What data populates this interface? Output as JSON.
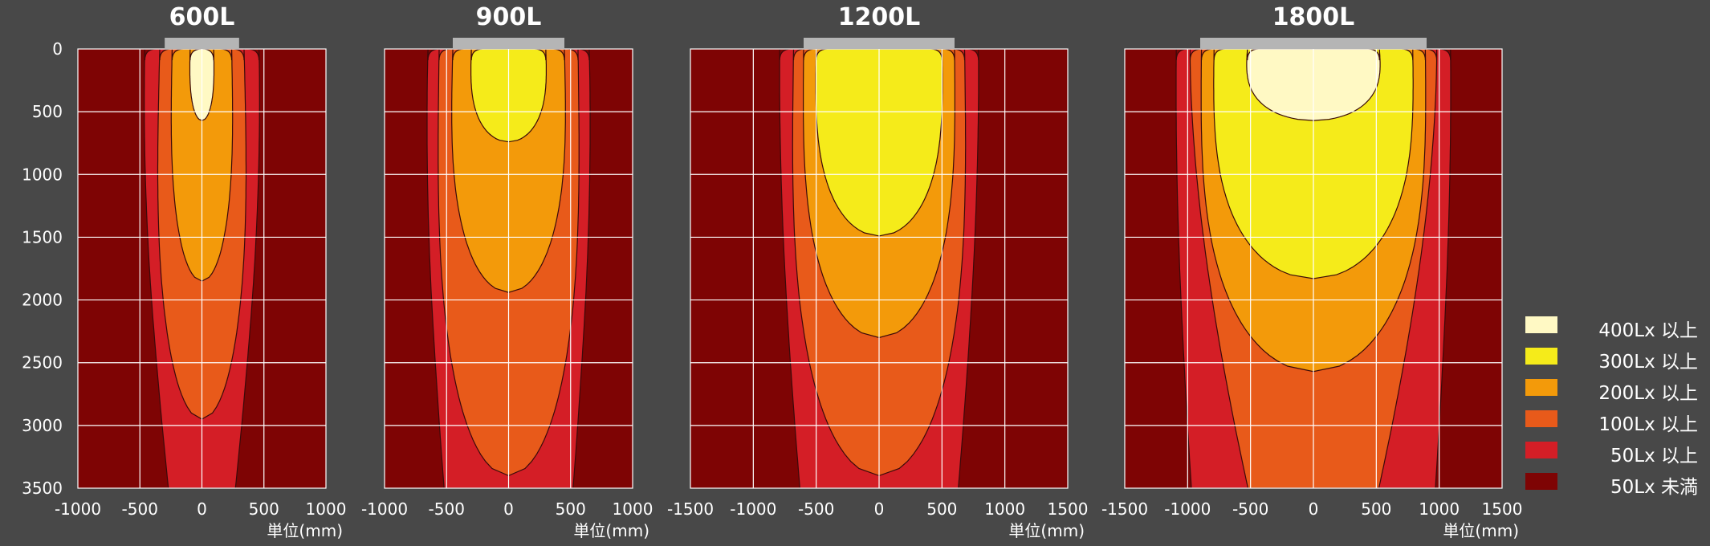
{
  "chart_data": [
    {
      "type": "heatmap",
      "title": "600L",
      "xlabel": "単位(mm)",
      "xlim": [
        -1000,
        1000
      ],
      "ylim": [
        0,
        3500
      ],
      "x_ticks": [
        "-1000",
        "-500",
        "0",
        "500",
        "1000"
      ],
      "y_ticks": [
        "0",
        "500",
        "1000",
        "1500",
        "2000",
        "2500",
        "3000",
        "3500"
      ],
      "lamp_width_mm": 600,
      "y_reversed": true,
      "grid": true,
      "contours": [
        {
          "level": "50Lx 以上",
          "halfwidth_at_top": 460,
          "max_halfwidth": 500,
          "depth": 3500,
          "width_at_depth": 230
        },
        {
          "level": "100Lx 以上",
          "halfwidth_at_top": 340,
          "max_halfwidth": 370,
          "depth": 2950,
          "width_at_depth": 0
        },
        {
          "level": "200Lx 以上",
          "halfwidth_at_top": 240,
          "max_halfwidth": 255,
          "depth": 1850,
          "width_at_depth": 0
        },
        {
          "level": "400Lx 以上",
          "halfwidth_at_top": 95,
          "max_halfwidth": 100,
          "depth": 570,
          "width_at_depth": 0
        }
      ]
    },
    {
      "type": "heatmap",
      "title": "900L",
      "xlabel": "単位(mm)",
      "xlim": [
        -1000,
        1000
      ],
      "ylim": [
        0,
        3500
      ],
      "x_ticks": [
        "-1000",
        "-500",
        "0",
        "500",
        "1000"
      ],
      "y_ticks": [],
      "lamp_width_mm": 900,
      "y_reversed": true,
      "grid": true,
      "contours": [
        {
          "level": "50Lx 以上",
          "halfwidth_at_top": 650,
          "max_halfwidth": 690,
          "depth": 3500,
          "width_at_depth": 480
        },
        {
          "level": "100Lx 以上",
          "halfwidth_at_top": 560,
          "max_halfwidth": 580,
          "depth": 3400,
          "width_at_depth": 0
        },
        {
          "level": "200Lx 以上",
          "halfwidth_at_top": 450,
          "max_halfwidth": 470,
          "depth": 1940,
          "width_at_depth": 0
        },
        {
          "level": "300Lx 以上",
          "halfwidth_at_top": 300,
          "max_halfwidth": 310,
          "depth": 740,
          "width_at_depth": 0
        }
      ]
    },
    {
      "type": "heatmap",
      "title": "1200L",
      "xlabel": "単位(mm)",
      "xlim": [
        -1500,
        1500
      ],
      "ylim": [
        0,
        3500
      ],
      "x_ticks": [
        "-1500",
        "-1000",
        "-500",
        "0",
        "500",
        "1000",
        "1500"
      ],
      "y_ticks": [],
      "lamp_width_mm": 1200,
      "y_reversed": true,
      "grid": true,
      "contours": [
        {
          "level": "50Lx 以上",
          "halfwidth_at_top": 790,
          "max_halfwidth": 810,
          "depth": 3500,
          "width_at_depth": 610
        },
        {
          "level": "100Lx 以上",
          "halfwidth_at_top": 680,
          "max_halfwidth": 700,
          "depth": 3400,
          "width_at_depth": 0
        },
        {
          "level": "200Lx 以上",
          "halfwidth_at_top": 600,
          "max_halfwidth": 610,
          "depth": 2300,
          "width_at_depth": 0
        },
        {
          "level": "300Lx 以上",
          "halfwidth_at_top": 500,
          "max_halfwidth": 510,
          "depth": 1490,
          "width_at_depth": 0
        }
      ]
    },
    {
      "type": "heatmap",
      "title": "1800L",
      "xlabel": "単位(mm)",
      "xlim": [
        -1500,
        1500
      ],
      "ylim": [
        0,
        3500
      ],
      "x_ticks": [
        "-1500",
        "-1000",
        "-500",
        "0",
        "500",
        "1000",
        "1500"
      ],
      "y_ticks": [],
      "lamp_width_mm": 1800,
      "y_reversed": true,
      "grid": true,
      "contours": [
        {
          "level": "50Lx 以上",
          "halfwidth_at_top": 1090,
          "max_halfwidth": 1110,
          "depth": 3500,
          "width_at_depth": 950
        },
        {
          "level": "100Lx 以上",
          "halfwidth_at_top": 980,
          "max_halfwidth": 1000,
          "depth": 3500,
          "width_at_depth": 500
        },
        {
          "level": "200Lx 以上",
          "halfwidth_at_top": 890,
          "max_halfwidth": 900,
          "depth": 2570,
          "width_at_depth": 0
        },
        {
          "level": "300Lx 以上",
          "halfwidth_at_top": 790,
          "max_halfwidth": 800,
          "depth": 1830,
          "width_at_depth": 0
        },
        {
          "level": "400Lx 以上",
          "halfwidth_at_top": 525,
          "max_halfwidth": 540,
          "depth": 570,
          "width_at_depth": 0
        }
      ]
    }
  ],
  "legend": [
    {
      "label": "400Lx 以上",
      "color": "#FFF9C4"
    },
    {
      "label": "300Lx 以上",
      "color": "#F5EB1A"
    },
    {
      "label": "200Lx 以上",
      "color": "#F39A0A"
    },
    {
      "label": "100Lx 以上",
      "color": "#E85A1A"
    },
    {
      "label": "50Lx 以上",
      "color": "#D41E26"
    },
    {
      "label": "50Lx 未満",
      "color": "#7E0404"
    }
  ],
  "colors": {
    "background": "#484848",
    "grid": "#FFFFFF",
    "lamp": "#B5B5B5",
    "outline": "#3A0A0A"
  }
}
